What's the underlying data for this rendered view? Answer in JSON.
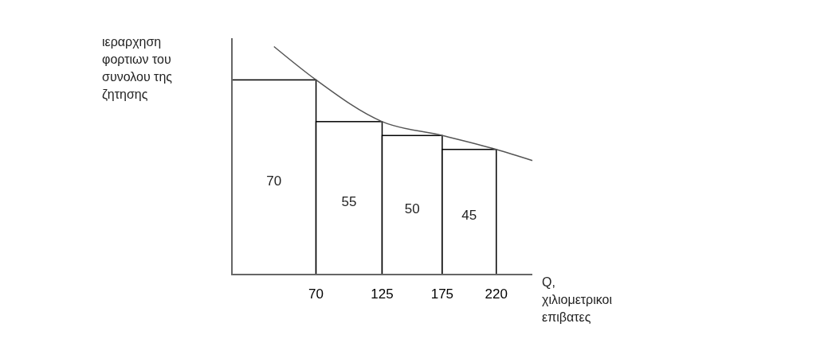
{
  "chart_data": {
    "type": "histogram",
    "bins": [
      0,
      70,
      125,
      175,
      220
    ],
    "values": [
      70,
      55,
      50,
      45
    ],
    "color": "#ffffff",
    "value_labels": [
      "70",
      "55",
      "50",
      "45"
    ],
    "series": [
      {
        "type": "line",
        "color": "#555555",
        "x": [
          35,
          70,
          125,
          175,
          220,
          250
        ],
        "values": [
          82,
          70,
          55,
          50,
          45,
          41
        ]
      }
    ],
    "xlim": [
      0,
      250
    ],
    "xticks": [
      70,
      125,
      175,
      220
    ],
    "ylim": [
      0,
      85
    ],
    "tick_labels": "x",
    "ylabel": "ιεραρχηση φορτιων του συνολου της ζητησης",
    "xlabel": "Q, χιλιομετρικοι επιβατες"
  }
}
